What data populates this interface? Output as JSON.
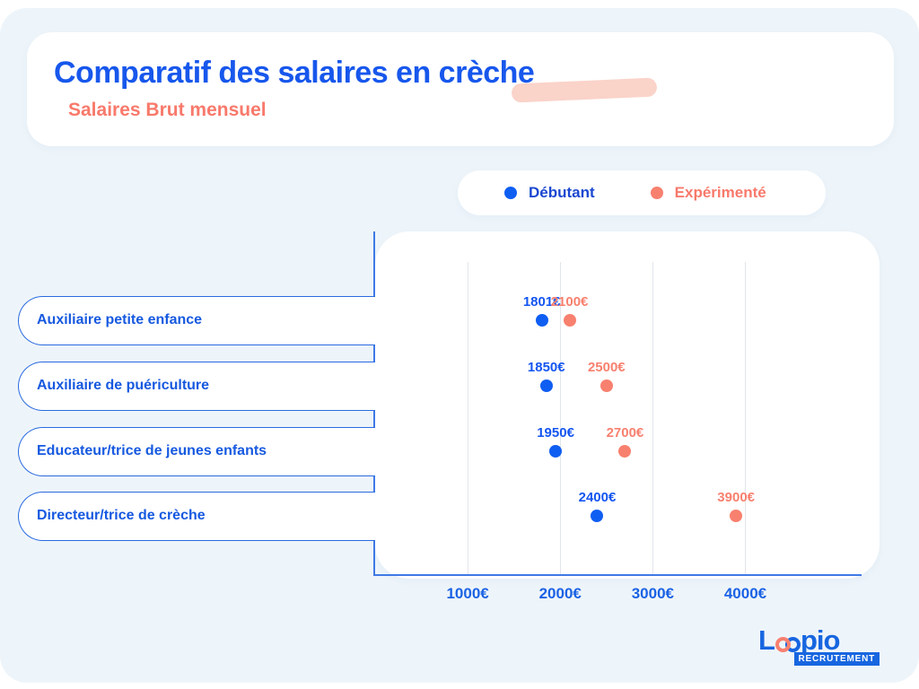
{
  "header": {
    "title": "Comparatif des salaires en crèche",
    "subtitle": "Salaires Brut mensuel"
  },
  "legend": {
    "items": [
      {
        "label": "Débutant",
        "color": "#0f5ef2"
      },
      {
        "label": "Expérimenté",
        "color": "#f8806f"
      }
    ]
  },
  "colors": {
    "primary_blue": "#1757ec",
    "coral": "#f8796b",
    "swoosh_salmon": "#fad3c9",
    "background_light_blue": "#eef5fa",
    "axis_blue": "#3f79e6",
    "gridline_gray": "#e1e6ec"
  },
  "chart_data": {
    "type": "scatter",
    "title": "Comparatif des salaires en crèche",
    "subtitle": "Salaires Brut mensuel",
    "categories": [
      "Auxiliaire petite enfance",
      "Auxiliaire de puériculture",
      "Educateur/trice de jeunes enfants",
      "Directeur/trice de crèche"
    ],
    "series": [
      {
        "name": "Débutant",
        "color": "#0f5ef2",
        "values": [
          1801,
          1850,
          1950,
          2400
        ],
        "labels": [
          "1801€",
          "1850€",
          "1950€",
          "2400€"
        ]
      },
      {
        "name": "Expérimenté",
        "color": "#f8806f",
        "values": [
          2100,
          2500,
          2700,
          3900
        ],
        "labels": [
          "2100€",
          "2500€",
          "2700€",
          "3900€"
        ]
      }
    ],
    "x_ticks": [
      "1000€",
      "2000€",
      "3000€",
      "4000€"
    ],
    "x_tick_values": [
      1000,
      2000,
      3000,
      4000
    ],
    "xlim": [
      0,
      5450
    ],
    "grid": "vertical-only",
    "legend_position": "top-right",
    "unit": "€ brut mensuel"
  },
  "logo": {
    "name": "Loopio",
    "part1": "L",
    "part2": "pio",
    "tagline": "RECRUTEMENT"
  }
}
